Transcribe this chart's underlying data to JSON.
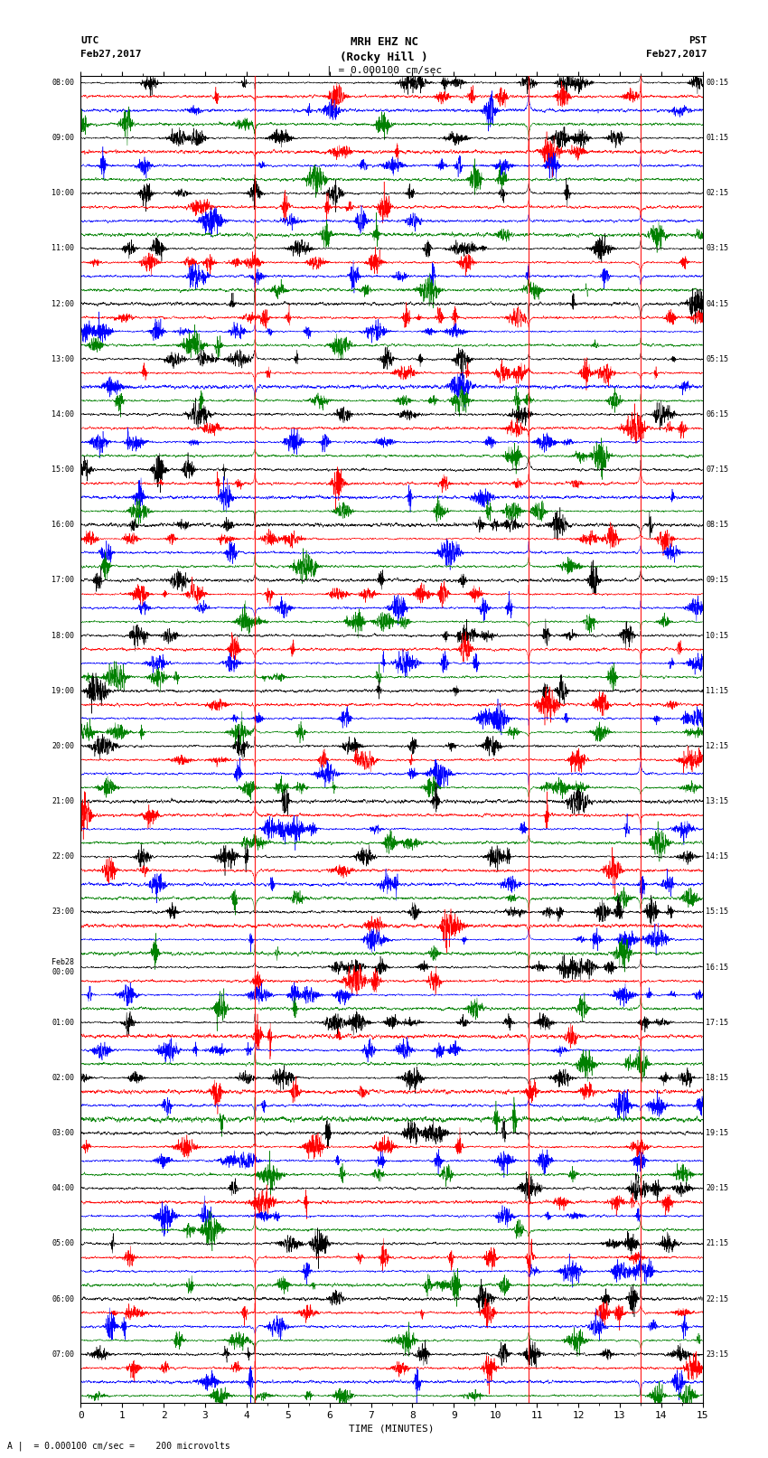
{
  "title_line1": "MRH EHZ NC",
  "title_line2": "(Rocky Hill )",
  "title_line3": "| = 0.000100 cm/sec",
  "left_label_line1": "UTC",
  "left_label_line2": "Feb27,2017",
  "right_label_line1": "PST",
  "right_label_line2": "Feb27,2017",
  "bottom_note": "A |  = 0.000100 cm/sec =    200 microvolts",
  "xlabel": "TIME (MINUTES)",
  "xlim": [
    0,
    15
  ],
  "xticks": [
    0,
    1,
    2,
    3,
    4,
    5,
    6,
    7,
    8,
    9,
    10,
    11,
    12,
    13,
    14,
    15
  ],
  "num_row_groups": 24,
  "traces_per_group": 4,
  "colors": [
    "black",
    "red",
    "blue",
    "green"
  ],
  "bg_color": "white",
  "fig_width": 8.5,
  "fig_height": 16.13,
  "left_times": [
    "08:00",
    "09:00",
    "10:00",
    "11:00",
    "12:00",
    "13:00",
    "14:00",
    "15:00",
    "16:00",
    "17:00",
    "18:00",
    "19:00",
    "20:00",
    "21:00",
    "22:00",
    "23:00",
    "Feb28\n00:00",
    "01:00",
    "02:00",
    "03:00",
    "04:00",
    "05:00",
    "06:00",
    "07:00"
  ],
  "right_times": [
    "00:15",
    "01:15",
    "02:15",
    "03:15",
    "04:15",
    "05:15",
    "06:15",
    "07:15",
    "08:15",
    "09:15",
    "10:15",
    "11:15",
    "12:15",
    "13:15",
    "14:15",
    "15:15",
    "16:15",
    "17:15",
    "18:15",
    "19:15",
    "20:15",
    "21:15",
    "22:15",
    "23:15"
  ],
  "red_vlines": [
    4.2,
    10.8,
    13.5
  ],
  "n_points": 4000
}
